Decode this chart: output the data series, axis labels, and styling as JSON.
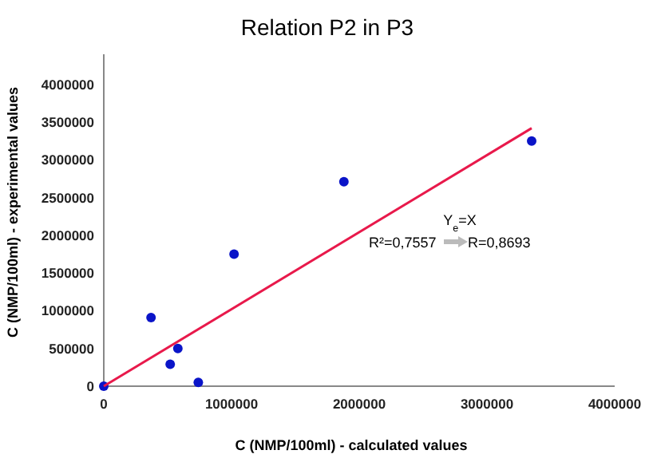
{
  "chart_data": {
    "type": "scatter",
    "title": "Relation P2 in P3",
    "xlabel": "C (NMP/100ml) - calculated values",
    "ylabel": "C (NMP/100ml) - experimental values",
    "xlim": [
      0,
      4000000
    ],
    "ylim": [
      0,
      4400000
    ],
    "xticks": [
      0,
      1000000,
      2000000,
      3000000,
      4000000
    ],
    "yticks": [
      0,
      500000,
      1000000,
      1500000,
      2000000,
      2500000,
      3000000,
      3500000,
      4000000
    ],
    "grid": false,
    "marker": "circle",
    "series": [
      {
        "color": "#0a14c8",
        "x": [
          0,
          370000,
          520000,
          580000,
          740000,
          1020000,
          1880000,
          3350000
        ],
        "values": [
          0,
          910000,
          290000,
          500000,
          50000,
          1750000,
          2710000,
          3250000
        ]
      },
      {
        "type": "line",
        "color": "#e8194b",
        "x": [
          0,
          3350000
        ],
        "values": [
          0,
          3420000
        ],
        "marker": "none"
      }
    ],
    "annotations": [
      "Y$_{e}$=X",
      "R²=0,7557",
      "R=0,8693"
    ]
  }
}
